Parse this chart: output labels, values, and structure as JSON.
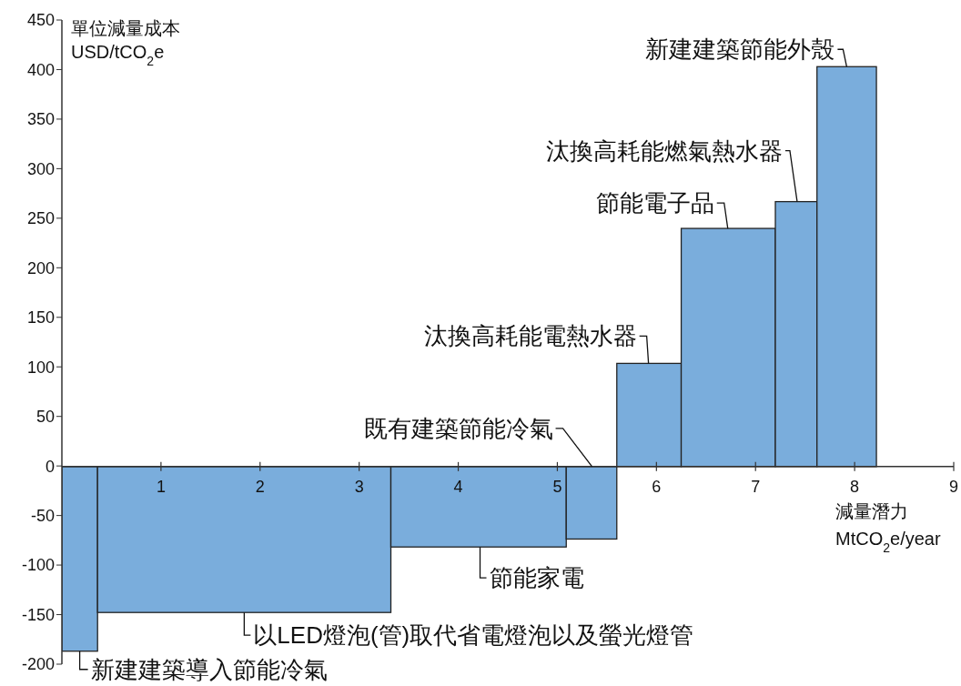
{
  "chart_data": {
    "type": "histogram",
    "ylabel": "單位減量成本\nUSD/tCO$_{2}$e",
    "xlabel": "減量潛力\nMtCO$_{2}$e/year",
    "bins": [
      0,
      0.36,
      3.32,
      5.09,
      5.6,
      6.25,
      7.2,
      7.62,
      8.22
    ],
    "values": [
      -186,
      -147,
      -81,
      -73,
      104,
      240,
      267,
      403
    ],
    "color": "#7aaddc",
    "xlim": [
      0,
      9
    ],
    "xticks": [
      1,
      2,
      3,
      4,
      5,
      6,
      7,
      8,
      9
    ],
    "ylim": [
      -200,
      450
    ],
    "yticks": [
      -200,
      -150,
      -100,
      -50,
      0,
      50,
      100,
      150,
      200,
      250,
      300,
      350,
      400,
      450
    ],
    "annotations": [
      {
        "text": "新建建築導入節能冷氣",
        "x": 0.18,
        "y": -186
      },
      {
        "text": "以LED燈泡(管)取代省電燈泡以及螢光燈管",
        "x": 1.84,
        "y": -147
      },
      {
        "text": "節能家電",
        "x": 4.22,
        "y": -81
      },
      {
        "text": "既有建築節能冷氣",
        "x": 5.35,
        "y": 0
      },
      {
        "text": "汰換高耗能電熱水器",
        "x": 5.92,
        "y": 104
      },
      {
        "text": "節能電子品",
        "x": 6.72,
        "y": 240
      },
      {
        "text": "汰換高耗能燃氣熱水器",
        "x": 7.42,
        "y": 267
      },
      {
        "text": "新建建築節能外殼",
        "x": 7.92,
        "y": 403
      }
    ]
  }
}
